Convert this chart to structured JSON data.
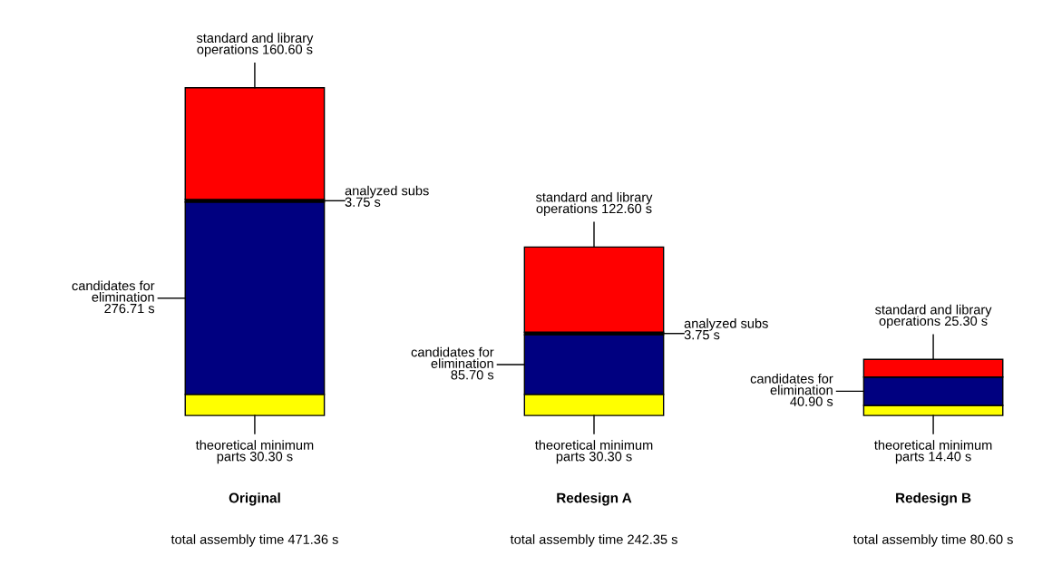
{
  "chart_data": {
    "type": "bar",
    "stacked": true,
    "legend": false,
    "categories": [
      "Original",
      "Redesign A",
      "Redesign B"
    ],
    "series": [
      {
        "color": "#ffff00",
        "values": [
          30.3,
          30.3,
          14.4
        ],
        "value_labels": [
          "theoretical minimum\nparts 30.30 s",
          "theoretical minimum\nparts 30.30 s",
          "theoretical minimum\nparts 14.40 s"
        ]
      },
      {
        "color": "#000080",
        "values": [
          276.71,
          85.7,
          40.9
        ],
        "value_labels": [
          "candidates for\nelimination\n276.71 s",
          "candidates for\nelimination\n85.70 s",
          "candidates for\nelimination\n40.90 s"
        ]
      },
      {
        "color": "#000000",
        "values": [
          3.75,
          3.75,
          null
        ],
        "value_labels": [
          "analyzed subs\n3.75 s",
          "analyzed subs\n3.75 s",
          null
        ]
      },
      {
        "color": "#ff0000",
        "values": [
          160.6,
          122.6,
          25.3
        ],
        "value_labels": [
          "standard and library\noperations 160.60 s",
          "standard and library\noperations 122.60 s",
          "standard and library\noperations 25.30 s"
        ]
      }
    ],
    "annotations": [
      "total assembly time 471.36 s",
      "total assembly time 242.35 s",
      "total assembly time 80.60 s"
    ]
  }
}
